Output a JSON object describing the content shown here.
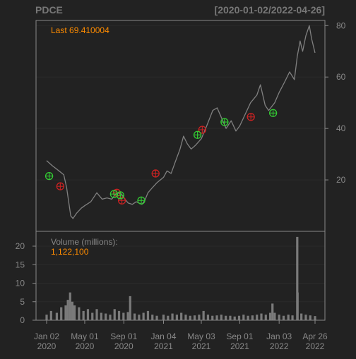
{
  "header": {
    "symbol": "PDCE",
    "date_range": "[2020-01-02/2022-04-26]"
  },
  "price_panel": {
    "last_label": "Last 69.410004"
  },
  "volume_panel": {
    "label": "Volume (millions):",
    "value": "1,122,100"
  },
  "colors": {
    "background": "#222222",
    "panel_border": "#888888",
    "grid": "#2b2b2b",
    "price_line": "#808080",
    "volume_bar": "#7a7a7a",
    "accent_text": "#ff8c00",
    "axis_text": "#888888",
    "buy_marker": "#33cc33",
    "sell_marker": "#cc2222"
  },
  "chart_data": [
    {
      "type": "line",
      "title": "PDCE",
      "subtitle": "[2020-01-02/2022-04-26]",
      "ylim": [
        0,
        82
      ],
      "y_ticks": [
        20,
        40,
        60,
        80
      ],
      "x_ticks": [
        {
          "date": "2020-01-02",
          "label": [
            "Jan 02",
            "2020"
          ]
        },
        {
          "date": "2020-05-01",
          "label": [
            "May 01",
            "2020"
          ]
        },
        {
          "date": "2020-09-01",
          "label": [
            "Sep 01",
            "2020"
          ]
        },
        {
          "date": "2021-01-04",
          "label": [
            "Jan 04",
            "2021"
          ]
        },
        {
          "date": "2021-05-03",
          "label": [
            "May 03",
            "2021"
          ]
        },
        {
          "date": "2021-09-01",
          "label": [
            "Sep 01",
            "2021"
          ]
        },
        {
          "date": "2022-01-03",
          "label": [
            "Jan 03",
            "2022"
          ]
        },
        {
          "date": "2022-04-26",
          "label": [
            "Apr 26",
            "2022"
          ]
        }
      ],
      "series": [
        {
          "points": [
            [
              "2020-01-02",
              27.5
            ],
            [
              "2020-01-20",
              25.5
            ],
            [
              "2020-02-10",
              23.5
            ],
            [
              "2020-02-25",
              22
            ],
            [
              "2020-03-05",
              17
            ],
            [
              "2020-03-12",
              11
            ],
            [
              "2020-03-18",
              6
            ],
            [
              "2020-03-25",
              5
            ],
            [
              "2020-04-05",
              7
            ],
            [
              "2020-04-20",
              9
            ],
            [
              "2020-05-01",
              10
            ],
            [
              "2020-05-20",
              11.5
            ],
            [
              "2020-06-08",
              15
            ],
            [
              "2020-06-25",
              12.5
            ],
            [
              "2020-07-10",
              13
            ],
            [
              "2020-07-25",
              12.5
            ],
            [
              "2020-08-10",
              15
            ],
            [
              "2020-08-25",
              14.5
            ],
            [
              "2020-09-01",
              13
            ],
            [
              "2020-09-15",
              11
            ],
            [
              "2020-09-28",
              10.5
            ],
            [
              "2020-10-10",
              11.5
            ],
            [
              "2020-10-28",
              10.5
            ],
            [
              "2020-11-06",
              12
            ],
            [
              "2020-11-16",
              15
            ],
            [
              "2020-11-30",
              17
            ],
            [
              "2020-12-15",
              19
            ],
            [
              "2021-01-04",
              21
            ],
            [
              "2021-01-15",
              23.5
            ],
            [
              "2021-01-28",
              22.5
            ],
            [
              "2021-02-10",
              27
            ],
            [
              "2021-02-25",
              32
            ],
            [
              "2021-03-08",
              37
            ],
            [
              "2021-03-20",
              34
            ],
            [
              "2021-04-01",
              32
            ],
            [
              "2021-04-15",
              33.5
            ],
            [
              "2021-05-03",
              36
            ],
            [
              "2021-05-20",
              41
            ],
            [
              "2021-06-08",
              47
            ],
            [
              "2021-06-22",
              48
            ],
            [
              "2021-07-06",
              44
            ],
            [
              "2021-07-20",
              40
            ],
            [
              "2021-08-05",
              43
            ],
            [
              "2021-08-20",
              39
            ],
            [
              "2021-09-01",
              41
            ],
            [
              "2021-09-20",
              46
            ],
            [
              "2021-10-05",
              50
            ],
            [
              "2021-10-25",
              53
            ],
            [
              "2021-11-05",
              57
            ],
            [
              "2021-11-20",
              49
            ],
            [
              "2021-12-01",
              47
            ],
            [
              "2021-12-20",
              50
            ],
            [
              "2022-01-03",
              54
            ],
            [
              "2022-01-20",
              58
            ],
            [
              "2022-02-05",
              62
            ],
            [
              "2022-02-20",
              59
            ],
            [
              "2022-03-01",
              68
            ],
            [
              "2022-03-10",
              74
            ],
            [
              "2022-03-18",
              70
            ],
            [
              "2022-03-28",
              76
            ],
            [
              "2022-04-08",
              80
            ],
            [
              "2022-04-15",
              75
            ],
            [
              "2022-04-26",
              69.41
            ]
          ]
        }
      ],
      "buy_markers": [
        [
          "2020-01-10",
          21.5
        ],
        [
          "2020-08-01",
          14.5
        ],
        [
          "2020-08-21",
          14
        ],
        [
          "2020-10-26",
          12
        ],
        [
          "2021-04-21",
          37.5
        ],
        [
          "2021-07-15",
          42.5
        ],
        [
          "2021-12-15",
          46
        ]
      ],
      "sell_markers": [
        [
          "2020-02-14",
          17.5
        ],
        [
          "2020-08-10",
          15
        ],
        [
          "2020-08-26",
          12
        ],
        [
          "2020-12-10",
          22.5
        ],
        [
          "2021-05-06",
          39.5
        ],
        [
          "2021-10-06",
          44.5
        ]
      ]
    },
    {
      "type": "bar",
      "title": "Volume (millions):",
      "ylim": [
        0,
        24
      ],
      "y_ticks": [
        0,
        5,
        10,
        15,
        20
      ],
      "series": [
        {
          "name": "Volume",
          "points": [
            [
              "2020-01-02",
              1.5
            ],
            [
              "2020-01-16",
              2.5
            ],
            [
              "2020-02-03",
              2
            ],
            [
              "2020-02-17",
              3.5
            ],
            [
              "2020-03-02",
              4
            ],
            [
              "2020-03-09",
              5.5
            ],
            [
              "2020-03-16",
              7.5
            ],
            [
              "2020-03-23",
              5
            ],
            [
              "2020-03-30",
              4
            ],
            [
              "2020-04-13",
              3.5
            ],
            [
              "2020-04-27",
              2.5
            ],
            [
              "2020-05-11",
              3
            ],
            [
              "2020-05-25",
              2
            ],
            [
              "2020-06-08",
              3
            ],
            [
              "2020-06-22",
              2
            ],
            [
              "2020-07-06",
              1.8
            ],
            [
              "2020-07-20",
              1.5
            ],
            [
              "2020-08-03",
              3
            ],
            [
              "2020-08-17",
              2.5
            ],
            [
              "2020-08-31",
              2
            ],
            [
              "2020-09-14",
              2.2
            ],
            [
              "2020-09-21",
              6.5
            ],
            [
              "2020-10-05",
              1.8
            ],
            [
              "2020-10-19",
              1.5
            ],
            [
              "2020-11-02",
              2
            ],
            [
              "2020-11-16",
              2.5
            ],
            [
              "2020-11-30",
              1.5
            ],
            [
              "2020-12-14",
              1.2
            ],
            [
              "2021-01-04",
              1.5
            ],
            [
              "2021-01-18",
              1.2
            ],
            [
              "2021-02-01",
              1.8
            ],
            [
              "2021-02-15",
              1.5
            ],
            [
              "2021-03-01",
              2
            ],
            [
              "2021-03-15",
              1.5
            ],
            [
              "2021-03-29",
              1.2
            ],
            [
              "2021-04-12",
              1.3
            ],
            [
              "2021-04-26",
              1.5
            ],
            [
              "2021-05-10",
              2.5
            ],
            [
              "2021-05-24",
              1.5
            ],
            [
              "2021-06-07",
              1.2
            ],
            [
              "2021-06-21",
              1.3
            ],
            [
              "2021-07-05",
              1.5
            ],
            [
              "2021-07-19",
              1.2
            ],
            [
              "2021-08-02",
              1.2
            ],
            [
              "2021-08-16",
              1
            ],
            [
              "2021-08-30",
              1.2
            ],
            [
              "2021-09-13",
              1.5
            ],
            [
              "2021-09-27",
              1.2
            ],
            [
              "2021-10-11",
              1.3
            ],
            [
              "2021-10-25",
              1.5
            ],
            [
              "2021-11-08",
              1.8
            ],
            [
              "2021-11-22",
              1.5
            ],
            [
              "2021-12-06",
              2
            ],
            [
              "2021-12-13",
              4.5
            ],
            [
              "2021-12-20",
              2
            ],
            [
              "2022-01-03",
              1.5
            ],
            [
              "2022-01-17",
              1.2
            ],
            [
              "2022-02-01",
              1.5
            ],
            [
              "2022-02-14",
              1.3
            ],
            [
              "2022-03-01",
              22.5
            ],
            [
              "2022-03-02",
              7.5
            ],
            [
              "2022-03-14",
              1.8
            ],
            [
              "2022-03-28",
              1.5
            ],
            [
              "2022-04-11",
              1.3
            ],
            [
              "2022-04-26",
              1.12
            ]
          ]
        }
      ]
    }
  ]
}
